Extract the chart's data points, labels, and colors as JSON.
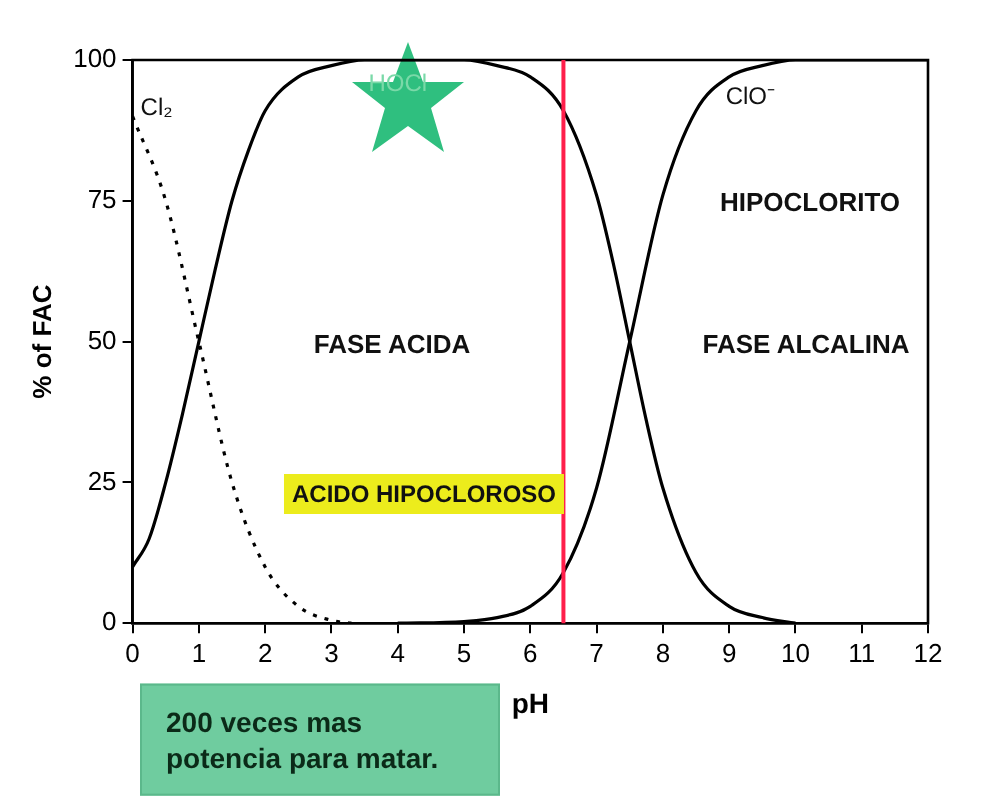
{
  "chart_data": {
    "type": "line",
    "xlabel": "pH",
    "ylabel": "% of FAC",
    "xlim": [
      0,
      12
    ],
    "xticks": [
      0,
      1,
      2,
      3,
      4,
      5,
      6,
      7,
      8,
      9,
      10,
      11,
      12
    ],
    "ylim": [
      0,
      100
    ],
    "yticks": [
      0,
      25,
      50,
      75,
      100
    ],
    "grid": false,
    "legend": false,
    "marker": "none",
    "series": [
      {
        "name": "Cl₂",
        "color": "#000000",
        "line_style": "dotted",
        "x": [
          0,
          0.5,
          1,
          1.5,
          2,
          2.5,
          3,
          3.3
        ],
        "values": [
          90,
          75,
          50,
          25,
          10,
          3,
          0.5,
          0
        ]
      },
      {
        "name": "HOCl",
        "color": "#000000",
        "line_style": "solid",
        "x": [
          0,
          0.25,
          0.5,
          0.75,
          1,
          1.25,
          1.5,
          1.75,
          2,
          2.5,
          3,
          3.5,
          4,
          5,
          5.5,
          6,
          6.5,
          7,
          7.25,
          7.5,
          7.75,
          8,
          8.5,
          9,
          9.5,
          10
        ],
        "values": [
          10,
          15,
          25,
          37,
          50,
          63,
          75,
          84,
          91,
          97,
          99,
          100,
          100,
          100,
          99,
          97,
          91,
          76,
          64,
          50,
          36,
          24,
          9,
          3,
          1,
          0
        ]
      },
      {
        "name": "ClO⁻",
        "color": "#000000",
        "line_style": "solid",
        "x": [
          4,
          5,
          5.5,
          6,
          6.5,
          7,
          7.5,
          8,
          8.5,
          9,
          9.5,
          10,
          11,
          12
        ],
        "values": [
          0,
          0.3,
          1,
          3,
          9,
          24,
          50,
          76,
          91,
          97,
          99,
          100,
          100,
          100
        ]
      }
    ],
    "ref_lines": [
      {
        "axis": "x",
        "value": 6.5,
        "color": "#ff1f4b"
      }
    ],
    "annotations": [
      "HIPOCLORITO",
      "FASE ACIDA",
      "FASE ALCALINA",
      "ACIDO HIPOCLOROSO",
      "200 veces mas potencia para matar."
    ]
  }
}
